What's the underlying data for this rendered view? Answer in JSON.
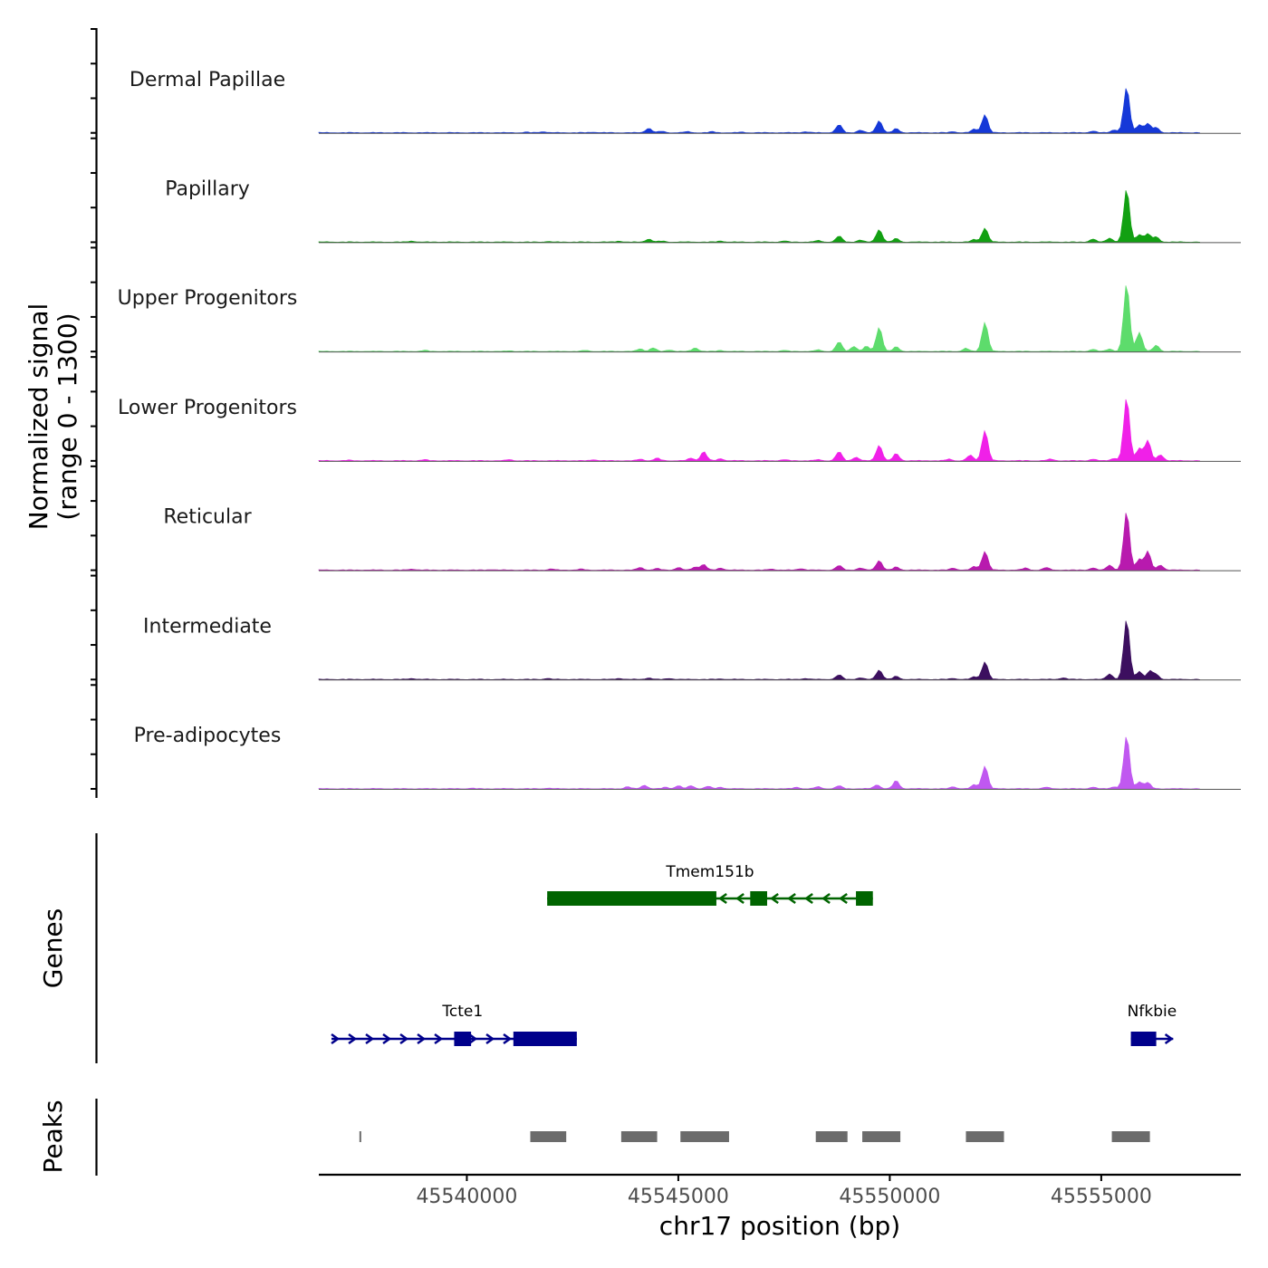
{
  "chart_data": {
    "type": "area",
    "y_axis_title_line1": "Normalized signal",
    "y_axis_title_line2": "(range 0 - 1300)",
    "x_axis_title": "chr17 position (bp)",
    "y_range": [
      0,
      1300
    ],
    "x_range": [
      45536500,
      45558300
    ],
    "x_ticks": [
      {
        "value": 45540000,
        "label": "45540000"
      },
      {
        "value": 45545000,
        "label": "45545000"
      },
      {
        "value": 45550000,
        "label": "45550000"
      },
      {
        "value": 45555000,
        "label": "45555000"
      }
    ],
    "tracks": [
      {
        "name": "Dermal Papillae",
        "color": "#1538d8",
        "peaks": [
          [
            45541400,
            0.01
          ],
          [
            45541800,
            0.02
          ],
          [
            45543000,
            0.01
          ],
          [
            45544300,
            0.09
          ],
          [
            45544600,
            0.03
          ],
          [
            45545200,
            0.02
          ],
          [
            45545800,
            0.02
          ],
          [
            45546500,
            0.01
          ],
          [
            45548000,
            0.02
          ],
          [
            45548800,
            0.16
          ],
          [
            45549300,
            0.05
          ],
          [
            45549750,
            0.24
          ],
          [
            45550150,
            0.08
          ],
          [
            45551500,
            0.02
          ],
          [
            45552000,
            0.07
          ],
          [
            45552250,
            0.36
          ],
          [
            45554800,
            0.03
          ],
          [
            45555300,
            0.06
          ],
          [
            45555600,
            0.9
          ],
          [
            45555900,
            0.16
          ],
          [
            45556100,
            0.18
          ],
          [
            45556300,
            0.1
          ]
        ]
      },
      {
        "name": "Papillary",
        "color": "#12a012",
        "peaks": [
          [
            45538700,
            0.02
          ],
          [
            45541900,
            0.01
          ],
          [
            45543600,
            0.02
          ],
          [
            45544300,
            0.06
          ],
          [
            45544600,
            0.02
          ],
          [
            45546000,
            0.02
          ],
          [
            45547500,
            0.02
          ],
          [
            45548300,
            0.03
          ],
          [
            45548800,
            0.12
          ],
          [
            45549300,
            0.04
          ],
          [
            45549750,
            0.25
          ],
          [
            45550150,
            0.07
          ],
          [
            45552000,
            0.05
          ],
          [
            45552250,
            0.28
          ],
          [
            45554800,
            0.06
          ],
          [
            45555200,
            0.08
          ],
          [
            45555600,
            1.05
          ],
          [
            45555900,
            0.15
          ],
          [
            45556100,
            0.16
          ],
          [
            45556300,
            0.1
          ]
        ]
      },
      {
        "name": "Upper Progenitors",
        "color": "#5ddc6c",
        "peaks": [
          [
            45539000,
            0.02
          ],
          [
            45541000,
            0.01
          ],
          [
            45542800,
            0.02
          ],
          [
            45544100,
            0.05
          ],
          [
            45544400,
            0.07
          ],
          [
            45544800,
            0.03
          ],
          [
            45545400,
            0.07
          ],
          [
            45546000,
            0.02
          ],
          [
            45547500,
            0.02
          ],
          [
            45548300,
            0.03
          ],
          [
            45548800,
            0.19
          ],
          [
            45549150,
            0.1
          ],
          [
            45549450,
            0.1
          ],
          [
            45549750,
            0.48
          ],
          [
            45550150,
            0.09
          ],
          [
            45551800,
            0.06
          ],
          [
            45552250,
            0.58
          ],
          [
            45554800,
            0.04
          ],
          [
            45555200,
            0.05
          ],
          [
            45555600,
            1.34
          ],
          [
            45555900,
            0.38
          ],
          [
            45556300,
            0.12
          ]
        ]
      },
      {
        "name": "Lower Progenitors",
        "color": "#f020e8",
        "peaks": [
          [
            45537200,
            0.01
          ],
          [
            45539000,
            0.02
          ],
          [
            45541000,
            0.02
          ],
          [
            45543000,
            0.02
          ],
          [
            45544100,
            0.03
          ],
          [
            45544500,
            0.05
          ],
          [
            45545300,
            0.05
          ],
          [
            45545600,
            0.18
          ],
          [
            45546000,
            0.04
          ],
          [
            45547500,
            0.02
          ],
          [
            45548300,
            0.02
          ],
          [
            45548800,
            0.18
          ],
          [
            45549200,
            0.07
          ],
          [
            45549750,
            0.31
          ],
          [
            45550150,
            0.14
          ],
          [
            45551400,
            0.03
          ],
          [
            45551900,
            0.11
          ],
          [
            45552250,
            0.6
          ],
          [
            45553800,
            0.03
          ],
          [
            45554800,
            0.03
          ],
          [
            45555300,
            0.05
          ],
          [
            45555600,
            1.25
          ],
          [
            45555900,
            0.25
          ],
          [
            45556100,
            0.4
          ],
          [
            45556400,
            0.12
          ]
        ]
      },
      {
        "name": "Reticular",
        "color": "#b81aae",
        "peaks": [
          [
            45538700,
            0.02
          ],
          [
            45540600,
            0.01
          ],
          [
            45542000,
            0.02
          ],
          [
            45542700,
            0.02
          ],
          [
            45544100,
            0.05
          ],
          [
            45544500,
            0.03
          ],
          [
            45545000,
            0.05
          ],
          [
            45545400,
            0.06
          ],
          [
            45545600,
            0.11
          ],
          [
            45546000,
            0.04
          ],
          [
            45547200,
            0.02
          ],
          [
            45547900,
            0.03
          ],
          [
            45548800,
            0.09
          ],
          [
            45549300,
            0.04
          ],
          [
            45549750,
            0.19
          ],
          [
            45550150,
            0.06
          ],
          [
            45551500,
            0.04
          ],
          [
            45552000,
            0.07
          ],
          [
            45552250,
            0.37
          ],
          [
            45553200,
            0.04
          ],
          [
            45553700,
            0.05
          ],
          [
            45554800,
            0.04
          ],
          [
            45555200,
            0.1
          ],
          [
            45555600,
            1.16
          ],
          [
            45555900,
            0.22
          ],
          [
            45556100,
            0.37
          ],
          [
            45556400,
            0.1
          ]
        ]
      },
      {
        "name": "Intermediate",
        "color": "#3c0f5f",
        "peaks": [
          [
            45538700,
            0.02
          ],
          [
            45541900,
            0.02
          ],
          [
            45543600,
            0.02
          ],
          [
            45544300,
            0.03
          ],
          [
            45544800,
            0.02
          ],
          [
            45546000,
            0.01
          ],
          [
            45548000,
            0.02
          ],
          [
            45548800,
            0.09
          ],
          [
            45549300,
            0.03
          ],
          [
            45549750,
            0.19
          ],
          [
            45550150,
            0.06
          ],
          [
            45551500,
            0.02
          ],
          [
            45552000,
            0.05
          ],
          [
            45552250,
            0.35
          ],
          [
            45554100,
            0.03
          ],
          [
            45555200,
            0.11
          ],
          [
            45555600,
            1.19
          ],
          [
            45555900,
            0.16
          ],
          [
            45556150,
            0.16
          ],
          [
            45556300,
            0.09
          ]
        ]
      },
      {
        "name": "Pre-adipocytes",
        "color": "#c058f0",
        "peaks": [
          [
            45540100,
            0.01
          ],
          [
            45541900,
            0.01
          ],
          [
            45543800,
            0.04
          ],
          [
            45544200,
            0.07
          ],
          [
            45544700,
            0.03
          ],
          [
            45545000,
            0.06
          ],
          [
            45545300,
            0.06
          ],
          [
            45545700,
            0.05
          ],
          [
            45546000,
            0.03
          ],
          [
            45547800,
            0.03
          ],
          [
            45548300,
            0.04
          ],
          [
            45548800,
            0.06
          ],
          [
            45549700,
            0.08
          ],
          [
            45550150,
            0.16
          ],
          [
            45551500,
            0.04
          ],
          [
            45552000,
            0.08
          ],
          [
            45552250,
            0.45
          ],
          [
            45553700,
            0.03
          ],
          [
            45554800,
            0.03
          ],
          [
            45555300,
            0.04
          ],
          [
            45555600,
            1.05
          ],
          [
            45555900,
            0.14
          ],
          [
            45556100,
            0.12
          ]
        ]
      }
    ],
    "genes_axis_title": "Genes",
    "genes": [
      {
        "name": "Tmem151b",
        "strand": "-",
        "color": "#006400",
        "start": 45541900,
        "end": 45549600,
        "exons": [
          [
            45541900,
            45545900
          ],
          [
            45546700,
            45547100
          ],
          [
            45549200,
            45549600
          ]
        ]
      },
      {
        "name": "Tcte1",
        "strand": "+",
        "color": "#00008b",
        "start": 45536800,
        "end": 45542600,
        "exons": [
          [
            45539700,
            45540100
          ],
          [
            45541100,
            45542600
          ]
        ]
      },
      {
        "name": "Nfkbie",
        "strand": "+",
        "color": "#00008b",
        "start": 45555700,
        "end": 45556700,
        "exons": [
          [
            45555700,
            45556300
          ]
        ]
      }
    ],
    "peaks_axis_title": "Peaks",
    "peak_regions": [
      [
        45537460,
        45537500
      ],
      [
        45541500,
        45542350
      ],
      [
        45543650,
        45544500
      ],
      [
        45545050,
        45546200
      ],
      [
        45548250,
        45549000
      ],
      [
        45549350,
        45550250
      ],
      [
        45551800,
        45552700
      ],
      [
        45555250,
        45556150
      ]
    ]
  }
}
